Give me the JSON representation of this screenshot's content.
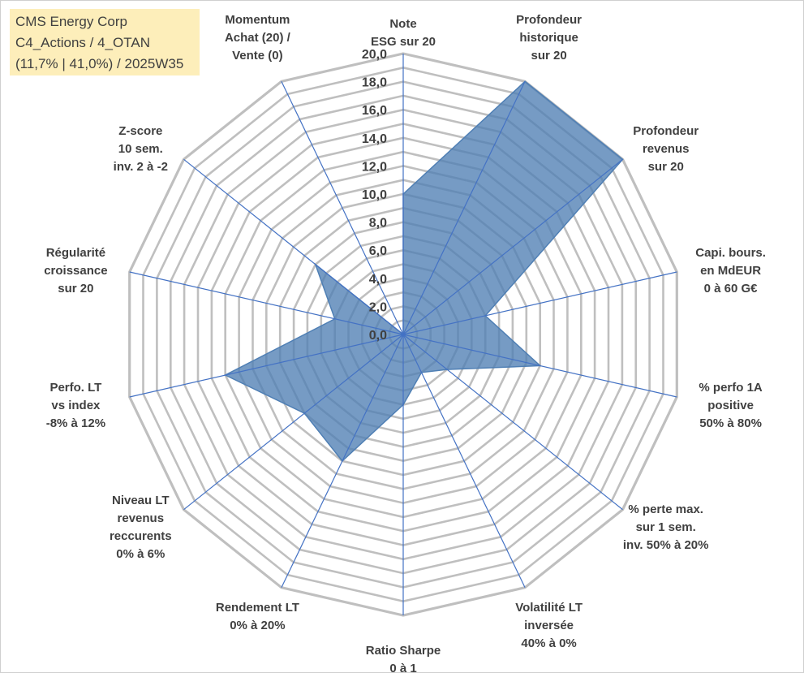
{
  "header": {
    "company": "CMS Energy Corp",
    "category": "C4_Actions / 4_OTAN",
    "stats": "(11,7% | 41,0%) / 2025W35"
  },
  "chart_data": {
    "type": "radar",
    "title": "",
    "rmax": 20,
    "tick_step": 1,
    "tick_labels": [
      "0,0",
      "2,0",
      "4,0",
      "6,0",
      "8,0",
      "10,0",
      "12,0",
      "14,0",
      "16,0",
      "18,0",
      "20,0"
    ],
    "axes": [
      [
        "Note",
        "ESG sur 20"
      ],
      [
        "Profondeur",
        "historique",
        "sur 20"
      ],
      [
        "Profondeur",
        "revenus",
        "sur 20"
      ],
      [
        "Capi. bours.",
        "en MdEUR",
        "0 à 60 G€"
      ],
      [
        "% perfo 1A",
        "positive",
        "50% à 80%"
      ],
      [
        "% perte max.",
        "sur 1 sem.",
        "inv. 50% à 20%"
      ],
      [
        "Volatilité LT",
        "inversée",
        "40% à 0%"
      ],
      [
        "Ratio Sharpe",
        "0 à 1"
      ],
      [
        "Rendement LT",
        "0% à 20%"
      ],
      [
        "Niveau LT",
        "revenus",
        "reccurents",
        "0% à 6%"
      ],
      [
        "Perfo. LT",
        "vs index",
        "-8% à 12%"
      ],
      [
        "Régularité",
        "croissance",
        "sur 20"
      ],
      [
        "Z-score",
        "10 sem.",
        "inv. 2 à -2"
      ],
      [
        "Momentum",
        "Achat (20) /",
        "Vente (0)"
      ]
    ],
    "series": [
      {
        "values": [
          10.0,
          20.0,
          20.0,
          6.0,
          10.0,
          4.0,
          3.0,
          5.0,
          10.0,
          9.0,
          13.0,
          5.0,
          8.0,
          0.0
        ]
      }
    ],
    "colors": {
      "fill": "#4f7fb4",
      "line": "#4472c4",
      "grid": "#bfbfbf",
      "text": "#404040",
      "title_bg": "#fdeeba"
    },
    "grid": true,
    "legend": false
  }
}
